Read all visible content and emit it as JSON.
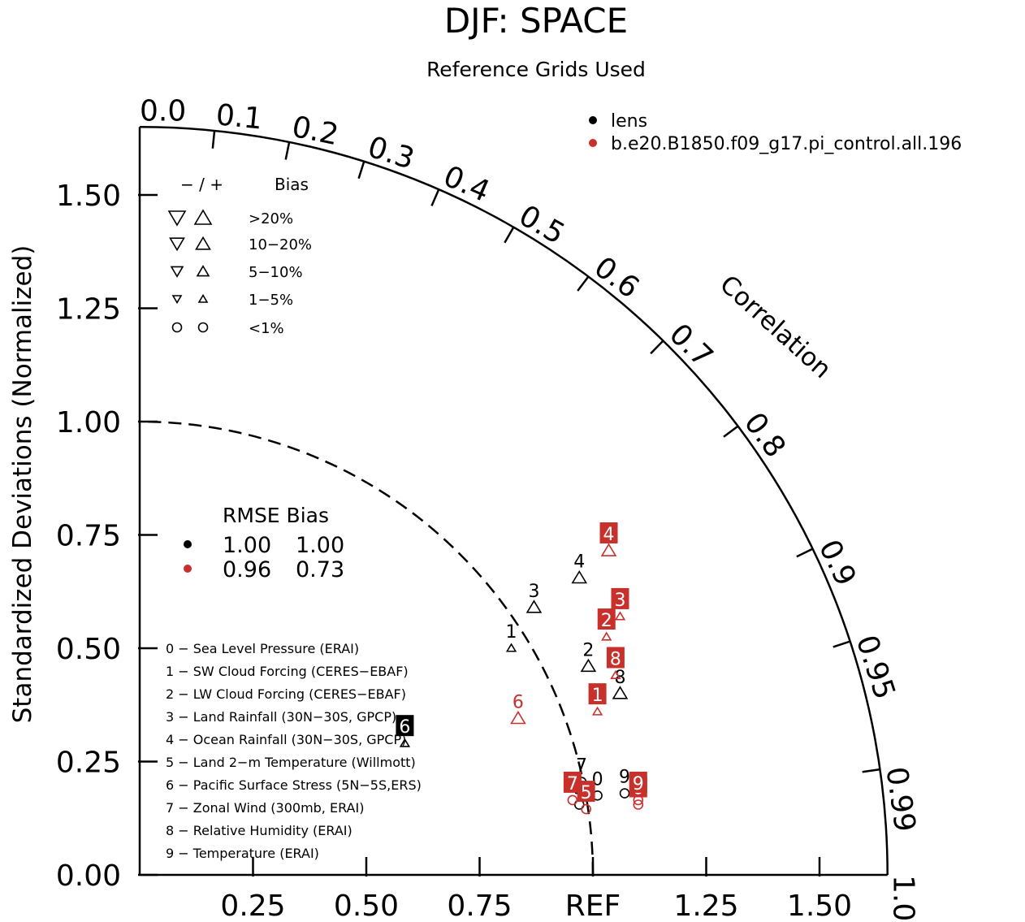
{
  "title": "DJF: SPACE",
  "subtitle": "Reference Grids Used",
  "chart_data": {
    "type": "scatter",
    "subtype": "taylor-diagram",
    "ylabel": "Standardized Deviations (Normalized)",
    "angular_label": "Correlation",
    "ref_label": "REF",
    "std_range": [
      0,
      1.65
    ],
    "y_ticks": [
      "0.00",
      "0.25",
      "0.50",
      "0.75",
      "1.00",
      "1.25",
      "1.50"
    ],
    "x_ticks": [
      "0.25",
      "0.50",
      "0.75",
      "REF",
      "1.25",
      "1.50"
    ],
    "corr_ticks": [
      {
        "value": 0.0,
        "label": "0.0"
      },
      {
        "value": 0.1,
        "label": "0.1"
      },
      {
        "value": 0.2,
        "label": "0.2"
      },
      {
        "value": 0.3,
        "label": "0.3"
      },
      {
        "value": 0.4,
        "label": "0.4"
      },
      {
        "value": 0.5,
        "label": "0.5"
      },
      {
        "value": 0.6,
        "label": "0.6"
      },
      {
        "value": 0.7,
        "label": "0.7"
      },
      {
        "value": 0.8,
        "label": "0.8"
      },
      {
        "value": 0.9,
        "label": "0.9"
      },
      {
        "value": 0.95,
        "label": "0.95"
      },
      {
        "value": 0.99,
        "label": "0.99"
      },
      {
        "value": 1.0,
        "label": "1.0"
      }
    ],
    "series": [
      {
        "name": "lens",
        "color": "#000000",
        "points": [
          {
            "id": "0",
            "x": 1.01,
            "y": 0.175,
            "marker": "circle"
          },
          {
            "id": "1",
            "x": 0.82,
            "y": 0.5,
            "marker": "up-small"
          },
          {
            "id": "2",
            "x": 0.99,
            "y": 0.46,
            "marker": "up-medium"
          },
          {
            "id": "3",
            "x": 0.87,
            "y": 0.59,
            "marker": "up-medium"
          },
          {
            "id": "4",
            "x": 0.97,
            "y": 0.655,
            "marker": "up-medium"
          },
          {
            "id": "5",
            "x": 0.97,
            "y": 0.155,
            "marker": "circle"
          },
          {
            "id": "6",
            "x": 0.585,
            "y": 0.29,
            "marker": "up-small",
            "boxed": true
          },
          {
            "id": "7",
            "x": 0.975,
            "y": 0.205,
            "marker": "circle"
          },
          {
            "id": "8",
            "x": 1.06,
            "y": 0.4,
            "marker": "up-medium"
          },
          {
            "id": "9",
            "x": 1.07,
            "y": 0.18,
            "marker": "circle"
          }
        ]
      },
      {
        "name": "b.e20.B1850.f09_g17.pi_control.all.196",
        "color": "#c8302c",
        "points": [
          {
            "id": "0",
            "x": 1.1,
            "y": 0.155,
            "marker": "circle",
            "boxed": true
          },
          {
            "id": "1",
            "x": 1.01,
            "y": 0.36,
            "marker": "up-small",
            "boxed": true
          },
          {
            "id": "2",
            "x": 1.03,
            "y": 0.525,
            "marker": "up-small",
            "boxed": true
          },
          {
            "id": "3",
            "x": 1.06,
            "y": 0.57,
            "marker": "up-small",
            "boxed": true
          },
          {
            "id": "4",
            "x": 1.035,
            "y": 0.715,
            "marker": "up-medium",
            "boxed": true
          },
          {
            "id": "5",
            "x": 0.985,
            "y": 0.145,
            "marker": "circle",
            "boxed": true
          },
          {
            "id": "6",
            "x": 0.835,
            "y": 0.345,
            "marker": "up-medium"
          },
          {
            "id": "7",
            "x": 0.955,
            "y": 0.165,
            "marker": "circle",
            "boxed": true
          },
          {
            "id": "8",
            "x": 1.05,
            "y": 0.44,
            "marker": "up-small",
            "boxed": true
          },
          {
            "id": "9",
            "x": 1.1,
            "y": 0.165,
            "marker": "circle",
            "boxed": true
          }
        ]
      }
    ],
    "legend": {
      "placement": "top-right",
      "entries": [
        {
          "label": "lens",
          "color": "#000000"
        },
        {
          "label": "b.e20.B1850.f09_g17.pi_control.all.196",
          "color": "#c8302c"
        }
      ]
    },
    "bias_legend": {
      "header_sign": "−  /  +",
      "header_label": "Bias",
      "rows": [
        {
          "label": ">20%",
          "size": "large"
        },
        {
          "label": "10−20%",
          "size": "medium-large"
        },
        {
          "label": "5−10%",
          "size": "medium"
        },
        {
          "label": "1−5%",
          "size": "small"
        },
        {
          "label": "<1%",
          "size": "circle"
        }
      ]
    },
    "rmse_table": {
      "header": "RMSE Bias",
      "rows": [
        {
          "color": "#000000",
          "rmse": "1.00",
          "bias": "1.00"
        },
        {
          "color": "#c8302c",
          "rmse": "0.96",
          "bias": "0.73"
        }
      ]
    },
    "variables": [
      "0 − Sea Level Pressure (ERAI)",
      "1 − SW Cloud Forcing (CERES−EBAF)",
      "2 − LW Cloud Forcing (CERES−EBAF)",
      "3 − Land Rainfall (30N−30S, GPCP)",
      "4 − Ocean Rainfall (30N−30S, GPCP)",
      "5 − Land 2−m Temperature (Willmott)",
      "6 − Pacific Surface Stress (5N−5S,ERS)",
      "7 − Zonal Wind (300mb, ERAI)",
      "8 − Relative Humidity (ERAI)",
      "9 − Temperature (ERAI)"
    ]
  }
}
